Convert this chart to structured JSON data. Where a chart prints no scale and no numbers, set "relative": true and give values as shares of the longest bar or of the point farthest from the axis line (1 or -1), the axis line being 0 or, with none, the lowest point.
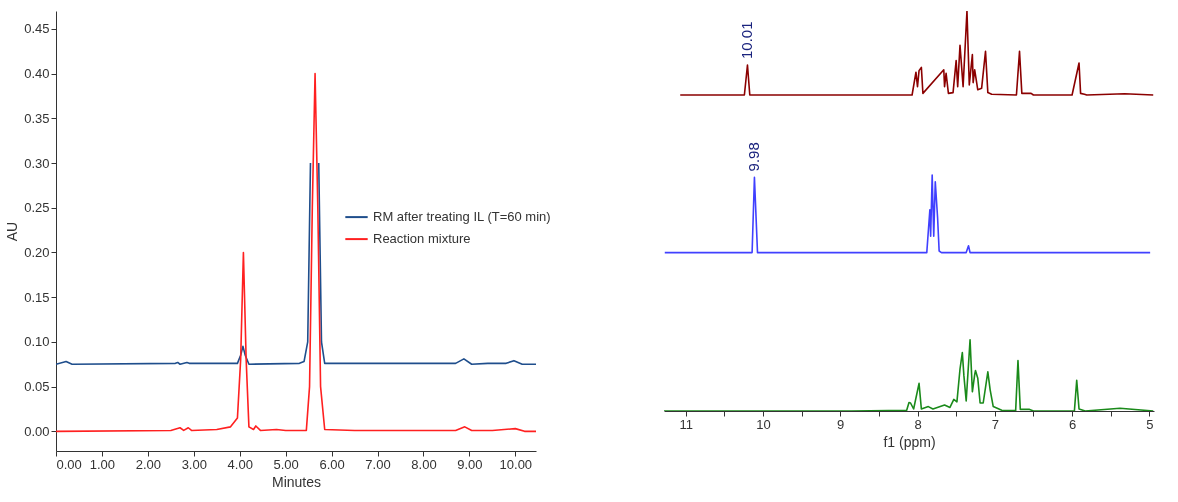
{
  "chart_data": [
    {
      "type": "line",
      "xlabel": "Minutes",
      "ylabel": "AU",
      "legend": "right",
      "grid": false,
      "xlim": [
        0,
        10.45
      ],
      "ylim": [
        -0.022,
        0.47
      ],
      "xticks": [
        {
          "value": 0,
          "label": "0.00"
        },
        {
          "value": 1,
          "label": "1.00"
        },
        {
          "value": 2,
          "label": "2.00"
        },
        {
          "value": 3,
          "label": "3.00"
        },
        {
          "value": 4,
          "label": "4.00"
        },
        {
          "value": 5,
          "label": "5.00"
        },
        {
          "value": 6,
          "label": "6.00"
        },
        {
          "value": 7,
          "label": "7.00"
        },
        {
          "value": 8,
          "label": "8.00"
        },
        {
          "value": 9,
          "label": "9.00"
        },
        {
          "value": 10,
          "label": "10.00"
        }
      ],
      "yticks": [
        {
          "value": 0,
          "label": "0.00"
        },
        {
          "value": 0.05,
          "label": "0.05"
        },
        {
          "value": 0.1,
          "label": "0.10"
        },
        {
          "value": 0.15,
          "label": "0.15"
        },
        {
          "value": 0.2,
          "label": "0.20"
        },
        {
          "value": 0.25,
          "label": "0.25"
        },
        {
          "value": 0.3,
          "label": "0.30"
        },
        {
          "value": 0.35,
          "label": "0.35"
        },
        {
          "value": 0.4,
          "label": "0.40"
        },
        {
          "value": 0.45,
          "label": "0.45"
        }
      ],
      "series": [
        {
          "name": "RM after treating IL (T=60 min)",
          "color": "#1f4e8c",
          "x": [
            0,
            0.22,
            0.35,
            2.6,
            2.65,
            2.7,
            2.85,
            2.9,
            3.95,
            4.02,
            4.07,
            4.12,
            4.2,
            5.3,
            5.4,
            5.48,
            5.54,
            5.6,
            5.66,
            5.72,
            5.78,
            5.85,
            8.7,
            8.88,
            9.05,
            9.4,
            9.8,
            9.97,
            10.15,
            10.45
          ],
          "values": [
            0.075,
            0.078,
            0.075,
            0.076,
            0.077,
            0.075,
            0.077,
            0.076,
            0.076,
            0.085,
            0.095,
            0.085,
            0.075,
            0.076,
            0.078,
            0.1,
            0.3,
            null,
            null,
            0.3,
            0.1,
            0.076,
            0.076,
            0.081,
            0.075,
            0.076,
            0.076,
            0.079,
            0.075,
            0.075
          ]
        },
        {
          "name": "Reaction mixture",
          "color": "#ff2020",
          "x": [
            0,
            2.5,
            2.7,
            2.78,
            2.88,
            2.95,
            3.5,
            3.8,
            3.95,
            4.02,
            4.08,
            4.14,
            4.2,
            4.3,
            4.35,
            4.45,
            4.8,
            5.0,
            5.45,
            5.52,
            5.58,
            5.64,
            5.7,
            5.76,
            5.85,
            6.5,
            8.7,
            8.9,
            9.05,
            9.5,
            10.0,
            10.2,
            10.45
          ],
          "values": [
            0,
            0.001,
            0.004,
            0.001,
            0.004,
            0.001,
            0.002,
            0.005,
            0.015,
            0.08,
            0.2,
            0.08,
            0.005,
            0.002,
            0.006,
            0.001,
            0.002,
            0.001,
            0.001,
            0.05,
            0.25,
            0.4,
            0.25,
            0.05,
            0.002,
            0.001,
            0.001,
            0.005,
            0.001,
            0.001,
            0.003,
            0,
            0
          ]
        }
      ]
    },
    {
      "type": "line",
      "relative": true,
      "tick_labels": "x",
      "xlabel": "f1 (ppm)",
      "xlim": [
        11.28,
        4.94
      ],
      "xticks": [
        11,
        {
          "value": 10.5,
          "label": null
        },
        10,
        {
          "value": 9.5,
          "label": null
        },
        9,
        {
          "value": 8.5,
          "label": null
        },
        8,
        {
          "value": 7.5,
          "label": null
        },
        7,
        {
          "value": 6.5,
          "label": null
        },
        6,
        {
          "value": 5.5,
          "label": null
        },
        5
      ],
      "annotations": [
        {
          "text": "10.01",
          "x": 10.2,
          "y": 0.865
        },
        {
          "text": "9.98",
          "x": 10.11,
          "y": 0.584
        }
      ],
      "series": [
        {
          "color": "#8b0000",
          "x": [
            11.07,
            10.24,
            10.2,
            10.17,
            8.07,
            8.02,
            8.0,
            7.98,
            7.95,
            7.93,
            7.66,
            7.65,
            7.63,
            7.6,
            7.54,
            7.5,
            7.48,
            7.45,
            7.41,
            7.36,
            7.33,
            7.29,
            7.28,
            7.26,
            7.22,
            7.17,
            7.14,
            7.12,
            7.09,
            7.04,
            6.72,
            6.68,
            6.65,
            6.53,
            6.5,
            6.0,
            5.91,
            5.89,
            5.84,
            5.81,
            5.32,
            4.95
          ],
          "values": [
            0.79,
            0.79,
            0.865,
            0.79,
            0.79,
            0.847,
            0.811,
            0.851,
            0.859,
            0.794,
            0.853,
            0.811,
            0.844,
            0.794,
            0.796,
            0.876,
            0.811,
            0.914,
            0.811,
            1,
            0.815,
            0.891,
            0.821,
            0.853,
            0.803,
            0.807,
            0.863,
            0.899,
            0.796,
            0.792,
            0.79,
            0.899,
            0.794,
            0.794,
            0.79,
            0.79,
            0.87,
            0.794,
            0.792,
            0.79,
            0.793,
            0.79
          ]
        },
        {
          "color": "#4040ff",
          "x": [
            11.27,
            10.14,
            10.11,
            10.07,
            7.88,
            7.84,
            7.83,
            7.81,
            7.79,
            7.77,
            7.74,
            7.72,
            7.69,
            7.37,
            7.34,
            7.32,
            4.99
          ],
          "values": [
            0.396,
            0.396,
            0.584,
            0.396,
            0.396,
            0.503,
            0.437,
            0.59,
            0.437,
            0.573,
            0.483,
            0.4,
            0.396,
            0.396,
            0.413,
            0.396,
            0.396
          ]
        },
        {
          "color": "#1a8a1a",
          "x": [
            11.28,
            8.85,
            8.14,
            8.11,
            8.09,
            8.05,
            7.98,
            7.95,
            7.86,
            7.8,
            7.65,
            7.58,
            7.53,
            7.49,
            7.45,
            7.42,
            7.4,
            7.37,
            7.32,
            7.29,
            7.26,
            7.25,
            7.22,
            7.19,
            7.15,
            7.09,
            7.06,
            7.02,
            6.91,
            6.73,
            6.7,
            6.67,
            6.55,
            6.5,
            5.97,
            5.94,
            5.91,
            5.86,
            5.83,
            5.38,
            4.95
          ],
          "values": [
            0,
            0,
            0.002,
            0.021,
            0.02,
            0.005,
            0.069,
            0.005,
            0.011,
            0.005,
            0.015,
            0.009,
            0.029,
            0.023,
            0.105,
            0.146,
            0.089,
            0.025,
            0.178,
            0.048,
            0.091,
            0.101,
            0.082,
            0.02,
            0.02,
            0.098,
            0.053,
            0.011,
            0.002,
            0.001,
            0.126,
            0.004,
            0.004,
            0,
            0,
            0.077,
            0.005,
            0.002,
            0,
            0.007,
            0
          ]
        }
      ]
    }
  ]
}
